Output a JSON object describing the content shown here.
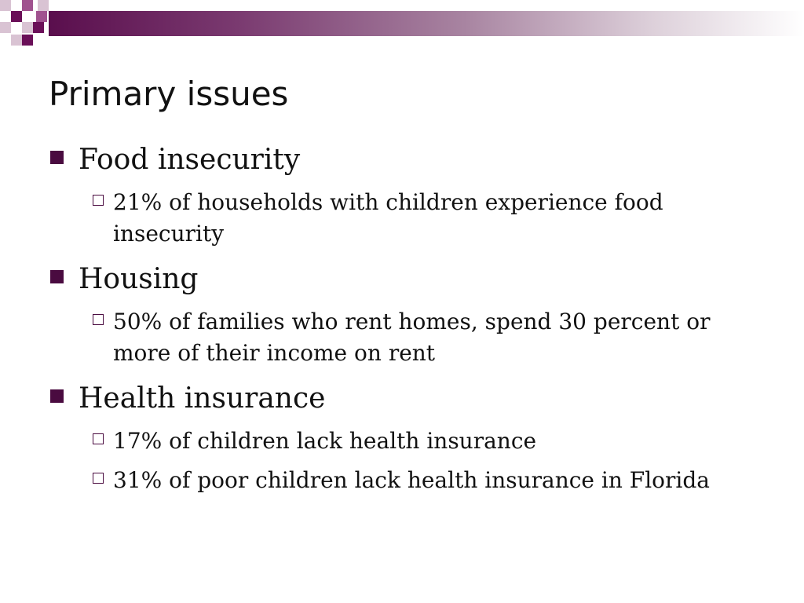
{
  "slide": {
    "title": "Primary issues",
    "accent_color": "#5a0e4d",
    "sections": [
      {
        "heading": "Food insecurity",
        "items": [
          "21% of households with children experience food insecurity"
        ]
      },
      {
        "heading": "Housing",
        "items": [
          "50% of families who rent homes, spend 30 percent or more of their income on rent"
        ]
      },
      {
        "heading": "Health insurance",
        "items": [
          "17% of children lack health insurance",
          "31% of poor children lack health insurance in Florida"
        ]
      }
    ]
  }
}
